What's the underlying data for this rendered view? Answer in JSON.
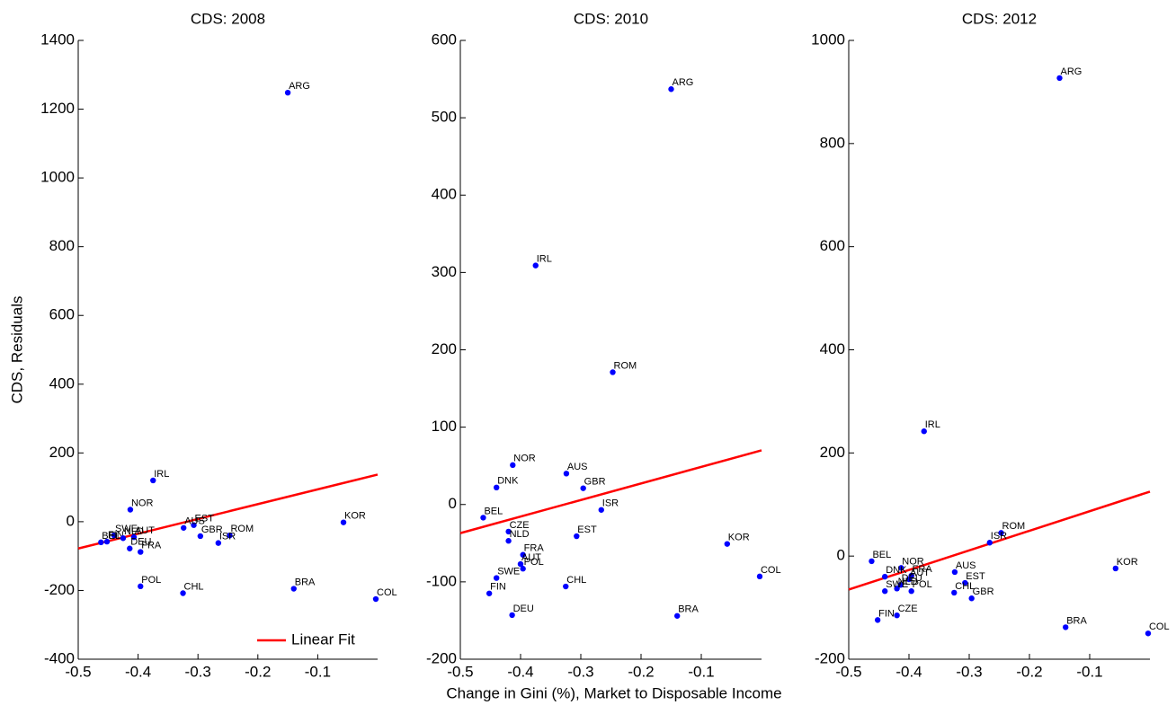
{
  "chart_data": [
    {
      "type": "scatter",
      "title": "CDS: 2008",
      "ylabel": "CDS, Residuals",
      "color": "#0000ff",
      "labels": [
        "ARG",
        "IRL",
        "NOR",
        "KOR",
        "EST",
        "AUS",
        "ROM",
        "GBR",
        "ISR",
        "SWE",
        "BEL",
        "FIN",
        "NLD",
        "AUT",
        "DEU",
        "FRA",
        "POL",
        "CHL",
        "BRA",
        "COL"
      ],
      "x": [
        -0.15,
        -0.375,
        -0.413,
        -0.057,
        -0.307,
        -0.324,
        -0.247,
        -0.296,
        -0.266,
        -0.44,
        -0.462,
        -0.452,
        -0.425,
        -0.407,
        -0.414,
        -0.396,
        -0.396,
        -0.325,
        -0.14,
        -0.003
      ],
      "y": [
        1248,
        120,
        35,
        -2,
        -10,
        -18,
        -40,
        -42,
        -62,
        -40,
        -60,
        -58,
        -48,
        -45,
        -78,
        -88,
        -188,
        -208,
        -195,
        -225
      ],
      "fit": {
        "name": "Linear Fit",
        "color": "#ff0000",
        "x": [
          -0.5,
          0
        ],
        "y": [
          -78,
          137
        ]
      },
      "legend": "lower right",
      "xlim": [
        -0.5,
        0
      ],
      "ylim": [
        -400,
        1400
      ],
      "xticks": [
        -0.5,
        -0.4,
        -0.3,
        -0.2,
        -0.1
      ],
      "yticks": [
        -400,
        -200,
        0,
        200,
        400,
        600,
        800,
        1000,
        1200,
        1400
      ]
    },
    {
      "type": "scatter",
      "title": "CDS: 2010",
      "xlabel": "Change in Gini (%), Market to Disposable Income",
      "color": "#0000ff",
      "labels": [
        "ARG",
        "IRL",
        "ROM",
        "NOR",
        "AUS",
        "DNK",
        "GBR",
        "ISR",
        "BEL",
        "CZE",
        "EST",
        "NLD",
        "KOR",
        "FRA",
        "AUT",
        "POL",
        "SWE",
        "CHL",
        "COL",
        "FIN",
        "DEU",
        "BRA"
      ],
      "x": [
        -0.15,
        -0.375,
        -0.247,
        -0.413,
        -0.324,
        -0.44,
        -0.296,
        -0.266,
        -0.462,
        -0.42,
        -0.307,
        -0.42,
        -0.057,
        -0.396,
        -0.4,
        -0.396,
        -0.44,
        -0.325,
        -0.003,
        -0.452,
        -0.414,
        -0.14
      ],
      "y": [
        537,
        309,
        171,
        51,
        40,
        22,
        21,
        -7,
        -17,
        -35,
        -41,
        -47,
        -51,
        -65,
        -77,
        -83,
        -95,
        -106,
        -93,
        -115,
        -143,
        -144
      ],
      "fit": {
        "color": "#ff0000",
        "x": [
          -0.5,
          0
        ],
        "y": [
          -37,
          70
        ]
      },
      "xlim": [
        -0.5,
        0
      ],
      "ylim": [
        -200,
        600
      ],
      "xticks": [
        -0.5,
        -0.4,
        -0.3,
        -0.2,
        -0.1
      ],
      "yticks": [
        -200,
        -100,
        0,
        100,
        200,
        300,
        400,
        500,
        600
      ]
    },
    {
      "type": "scatter",
      "title": "CDS: 2012",
      "color": "#0000ff",
      "labels": [
        "ARG",
        "IRL",
        "ROM",
        "ISR",
        "BEL",
        "NOR",
        "KOR",
        "AUS",
        "FRA",
        "DNK",
        "AUT",
        "EST",
        "DEU",
        "NLD",
        "POL",
        "SWE",
        "CHL",
        "GBR",
        "CZE",
        "FIN",
        "BRA",
        "COL"
      ],
      "x": [
        -0.15,
        -0.375,
        -0.247,
        -0.266,
        -0.462,
        -0.413,
        -0.057,
        -0.324,
        -0.396,
        -0.44,
        -0.4,
        -0.307,
        -0.414,
        -0.42,
        -0.396,
        -0.44,
        -0.325,
        -0.296,
        -0.42,
        -0.452,
        -0.14,
        -0.003
      ],
      "y": [
        927,
        242,
        45,
        26,
        -10,
        -23,
        -24,
        -31,
        -38,
        -40,
        -45,
        -52,
        -56,
        -63,
        -68,
        -68,
        -71,
        -82,
        -115,
        -124,
        -138,
        -150
      ],
      "fit": {
        "color": "#ff0000",
        "x": [
          -0.5,
          0
        ],
        "y": [
          -65,
          125
        ]
      },
      "xlim": [
        -0.5,
        0
      ],
      "ylim": [
        -200,
        1000
      ],
      "xticks": [
        -0.5,
        -0.4,
        -0.3,
        -0.2,
        -0.1
      ],
      "yticks": [
        -200,
        0,
        200,
        400,
        600,
        800,
        1000
      ]
    }
  ]
}
